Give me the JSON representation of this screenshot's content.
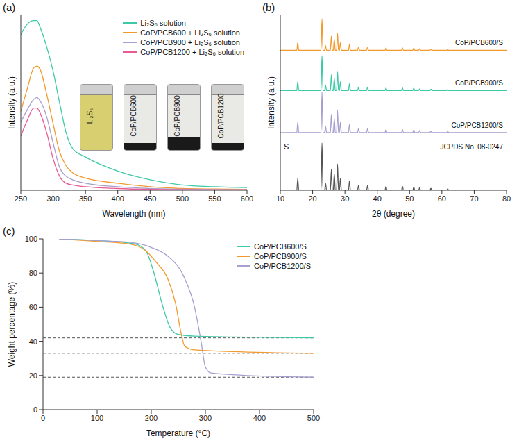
{
  "chart_data": [
    {
      "label": "(a)",
      "type": "line",
      "xlabel": "Wavelength (nm)",
      "ylabel": "Intensity (a.u.)",
      "x": [
        250,
        260,
        270,
        275,
        280,
        290,
        300,
        310,
        320,
        330,
        350,
        400,
        450,
        500,
        550,
        600
      ],
      "series": [
        {
          "name": "Li₂S₆ solution",
          "color": "#3cc9a6",
          "values": [
            89,
            95,
            97,
            97,
            93,
            82,
            68,
            50,
            33,
            24,
            19,
            11,
            6,
            3,
            2,
            1.5
          ]
        },
        {
          "name": "CoP/PCB600 + Li₂S₆ solution",
          "color": "#f39a2d",
          "values": [
            45,
            58,
            70,
            71,
            69,
            55,
            38,
            22,
            14,
            10,
            7,
            4,
            2,
            1,
            0.7,
            0.5
          ]
        },
        {
          "name": "CoP/PCB900 + Li₂S₆ solution",
          "color": "#a69fcf",
          "values": [
            39,
            46,
            52,
            53,
            51,
            42,
            27,
            13,
            8,
            6,
            4,
            2,
            1,
            0.6,
            0.4,
            0.3
          ]
        },
        {
          "name": "CoP/PCB1200 + Li₂S₆ solution",
          "color": "#e85a93",
          "values": [
            31,
            40,
            47,
            47,
            44,
            33,
            18,
            8,
            4,
            3,
            2,
            1,
            0.5,
            0.3,
            0.2,
            0.2
          ]
        }
      ],
      "annotations": [
        "Li₂S₆",
        "CoP/PCB600",
        "CoP/PCB900",
        "CoP/PCB1200"
      ],
      "xlim": [
        250,
        600
      ],
      "xticks": [
        250,
        300,
        350,
        400,
        450,
        500,
        550,
        600
      ],
      "ylim": [
        0,
        100
      ],
      "yticks": [],
      "tick_labels": "x",
      "grid": false,
      "legend": "upper right"
    },
    {
      "label": "(b)",
      "type": "line",
      "xlabel": "2θ (degree)",
      "ylabel": "Intensity (a.u.)",
      "x": [
        10,
        15.1,
        15.4,
        15.7,
        22.6,
        22.9,
        23.2,
        23.7,
        24.0,
        24.3,
        25.5,
        25.8,
        26.1,
        26.4,
        26.7,
        27.0,
        27.4,
        27.7,
        28.0,
        28.3,
        28.6,
        28.9,
        31.1,
        31.4,
        31.7,
        33.9,
        34.2,
        34.5,
        36.7,
        37.0,
        37.3,
        42.4,
        42.7,
        43.0,
        47.5,
        47.8,
        48.1,
        51.0,
        51.3,
        51.6,
        52.8,
        53.1,
        53.4,
        56.3,
        56.6,
        56.9,
        61.5,
        61.8,
        62.1,
        80
      ],
      "series": [
        {
          "name": "CoP/PCB600/S",
          "color": "#f39a2d",
          "values": [
            80,
            80,
            84.5,
            80,
            80,
            98,
            80,
            80,
            82.7,
            80,
            80,
            88.1,
            80,
            80,
            86.3,
            80,
            80,
            89.9,
            80,
            80,
            84.5,
            80,
            80,
            83.6,
            80,
            80,
            81.8,
            80,
            80,
            81.8,
            80,
            80,
            81.4,
            80,
            80,
            81.4,
            80,
            80,
            81.3,
            80,
            80,
            80.9,
            80,
            80,
            80.7,
            80,
            80,
            80.5,
            80,
            80
          ]
        },
        {
          "name": "CoP/PCB900/S",
          "color": "#3cc9a6",
          "values": [
            57,
            57,
            62,
            57,
            57,
            77,
            57,
            57,
            60,
            57,
            57,
            66,
            57,
            57,
            64,
            57,
            57,
            68,
            57,
            57,
            62,
            57,
            57,
            61,
            57,
            57,
            59,
            57,
            57,
            59,
            57,
            57,
            58.6,
            57,
            57,
            58.6,
            57,
            57,
            58.4,
            57,
            57,
            58,
            57,
            57,
            57.8,
            57,
            57,
            57.6,
            57,
            57
          ]
        },
        {
          "name": "CoP/PCB1200/S",
          "color": "#a69fcf",
          "values": [
            33,
            33,
            38.8,
            33,
            33,
            56,
            33,
            33,
            36.5,
            33,
            33,
            43.4,
            33,
            33,
            41.1,
            33,
            33,
            45.7,
            33,
            33,
            38.8,
            33,
            33,
            37.6,
            33,
            33,
            35.3,
            33,
            33,
            35.3,
            33,
            33,
            34.8,
            33,
            33,
            34.8,
            33,
            33,
            34.6,
            33,
            33,
            34.2,
            33,
            33,
            33.9,
            33,
            33,
            33.7,
            33,
            33
          ]
        },
        {
          "name": "S",
          "card": "JCPDS No. 08-0247",
          "color": "#555555",
          "values": [
            0,
            0,
            6.8,
            0,
            0,
            27,
            0,
            0,
            4,
            0,
            0,
            12,
            0,
            0,
            9.5,
            0,
            0,
            15,
            0,
            0,
            6.8,
            0,
            0,
            5.4,
            0,
            0,
            2.7,
            0,
            0,
            2.7,
            0,
            0,
            2.2,
            0,
            0,
            2.2,
            0,
            0,
            1.9,
            0,
            0,
            1.4,
            0,
            0,
            1.1,
            0,
            0,
            0.8,
            0,
            0
          ]
        }
      ],
      "xlim": [
        10,
        80
      ],
      "xticks": [
        10,
        20,
        30,
        40,
        50,
        60,
        70,
        80
      ],
      "ylim": [
        0,
        100
      ],
      "yticks": [],
      "tick_labels": "x",
      "grid": false
    },
    {
      "label": "(c)",
      "type": "line",
      "xlabel": "Temperature (°C)",
      "ylabel": "Weight percentage (%)",
      "series": [
        {
          "name": "CoP/PCB600/S",
          "color": "#3cc9a6",
          "x": [
            30,
            100,
            170,
            190,
            205,
            220,
            235,
            250,
            280,
            350,
            500
          ],
          "values": [
            100,
            99,
            97,
            93,
            80,
            62,
            48,
            44,
            43,
            42.5,
            42
          ]
        },
        {
          "name": "CoP/PCB900/S",
          "color": "#f39a2d",
          "x": [
            30,
            100,
            160,
            190,
            210,
            230,
            245,
            255,
            262,
            280,
            350,
            500
          ],
          "values": [
            100,
            98.5,
            97,
            93,
            86,
            77,
            62,
            45,
            37,
            35,
            34,
            33
          ]
        },
        {
          "name": "CoP/PCB1200/S",
          "color": "#a69fcf",
          "x": [
            30,
            100,
            160,
            200,
            230,
            260,
            280,
            292,
            300,
            310,
            350,
            500
          ],
          "values": [
            100,
            99,
            98,
            95,
            90,
            78,
            60,
            40,
            25,
            21.5,
            20.5,
            19
          ]
        }
      ],
      "reference_lines": [
        42,
        33,
        19
      ],
      "xlim": [
        0,
        500
      ],
      "xticks": [
        0,
        100,
        200,
        300,
        400,
        500
      ],
      "ylim": [
        0,
        100
      ],
      "yticks": [
        0,
        20,
        40,
        60,
        80,
        100
      ],
      "grid": false,
      "legend": "upper right"
    }
  ]
}
